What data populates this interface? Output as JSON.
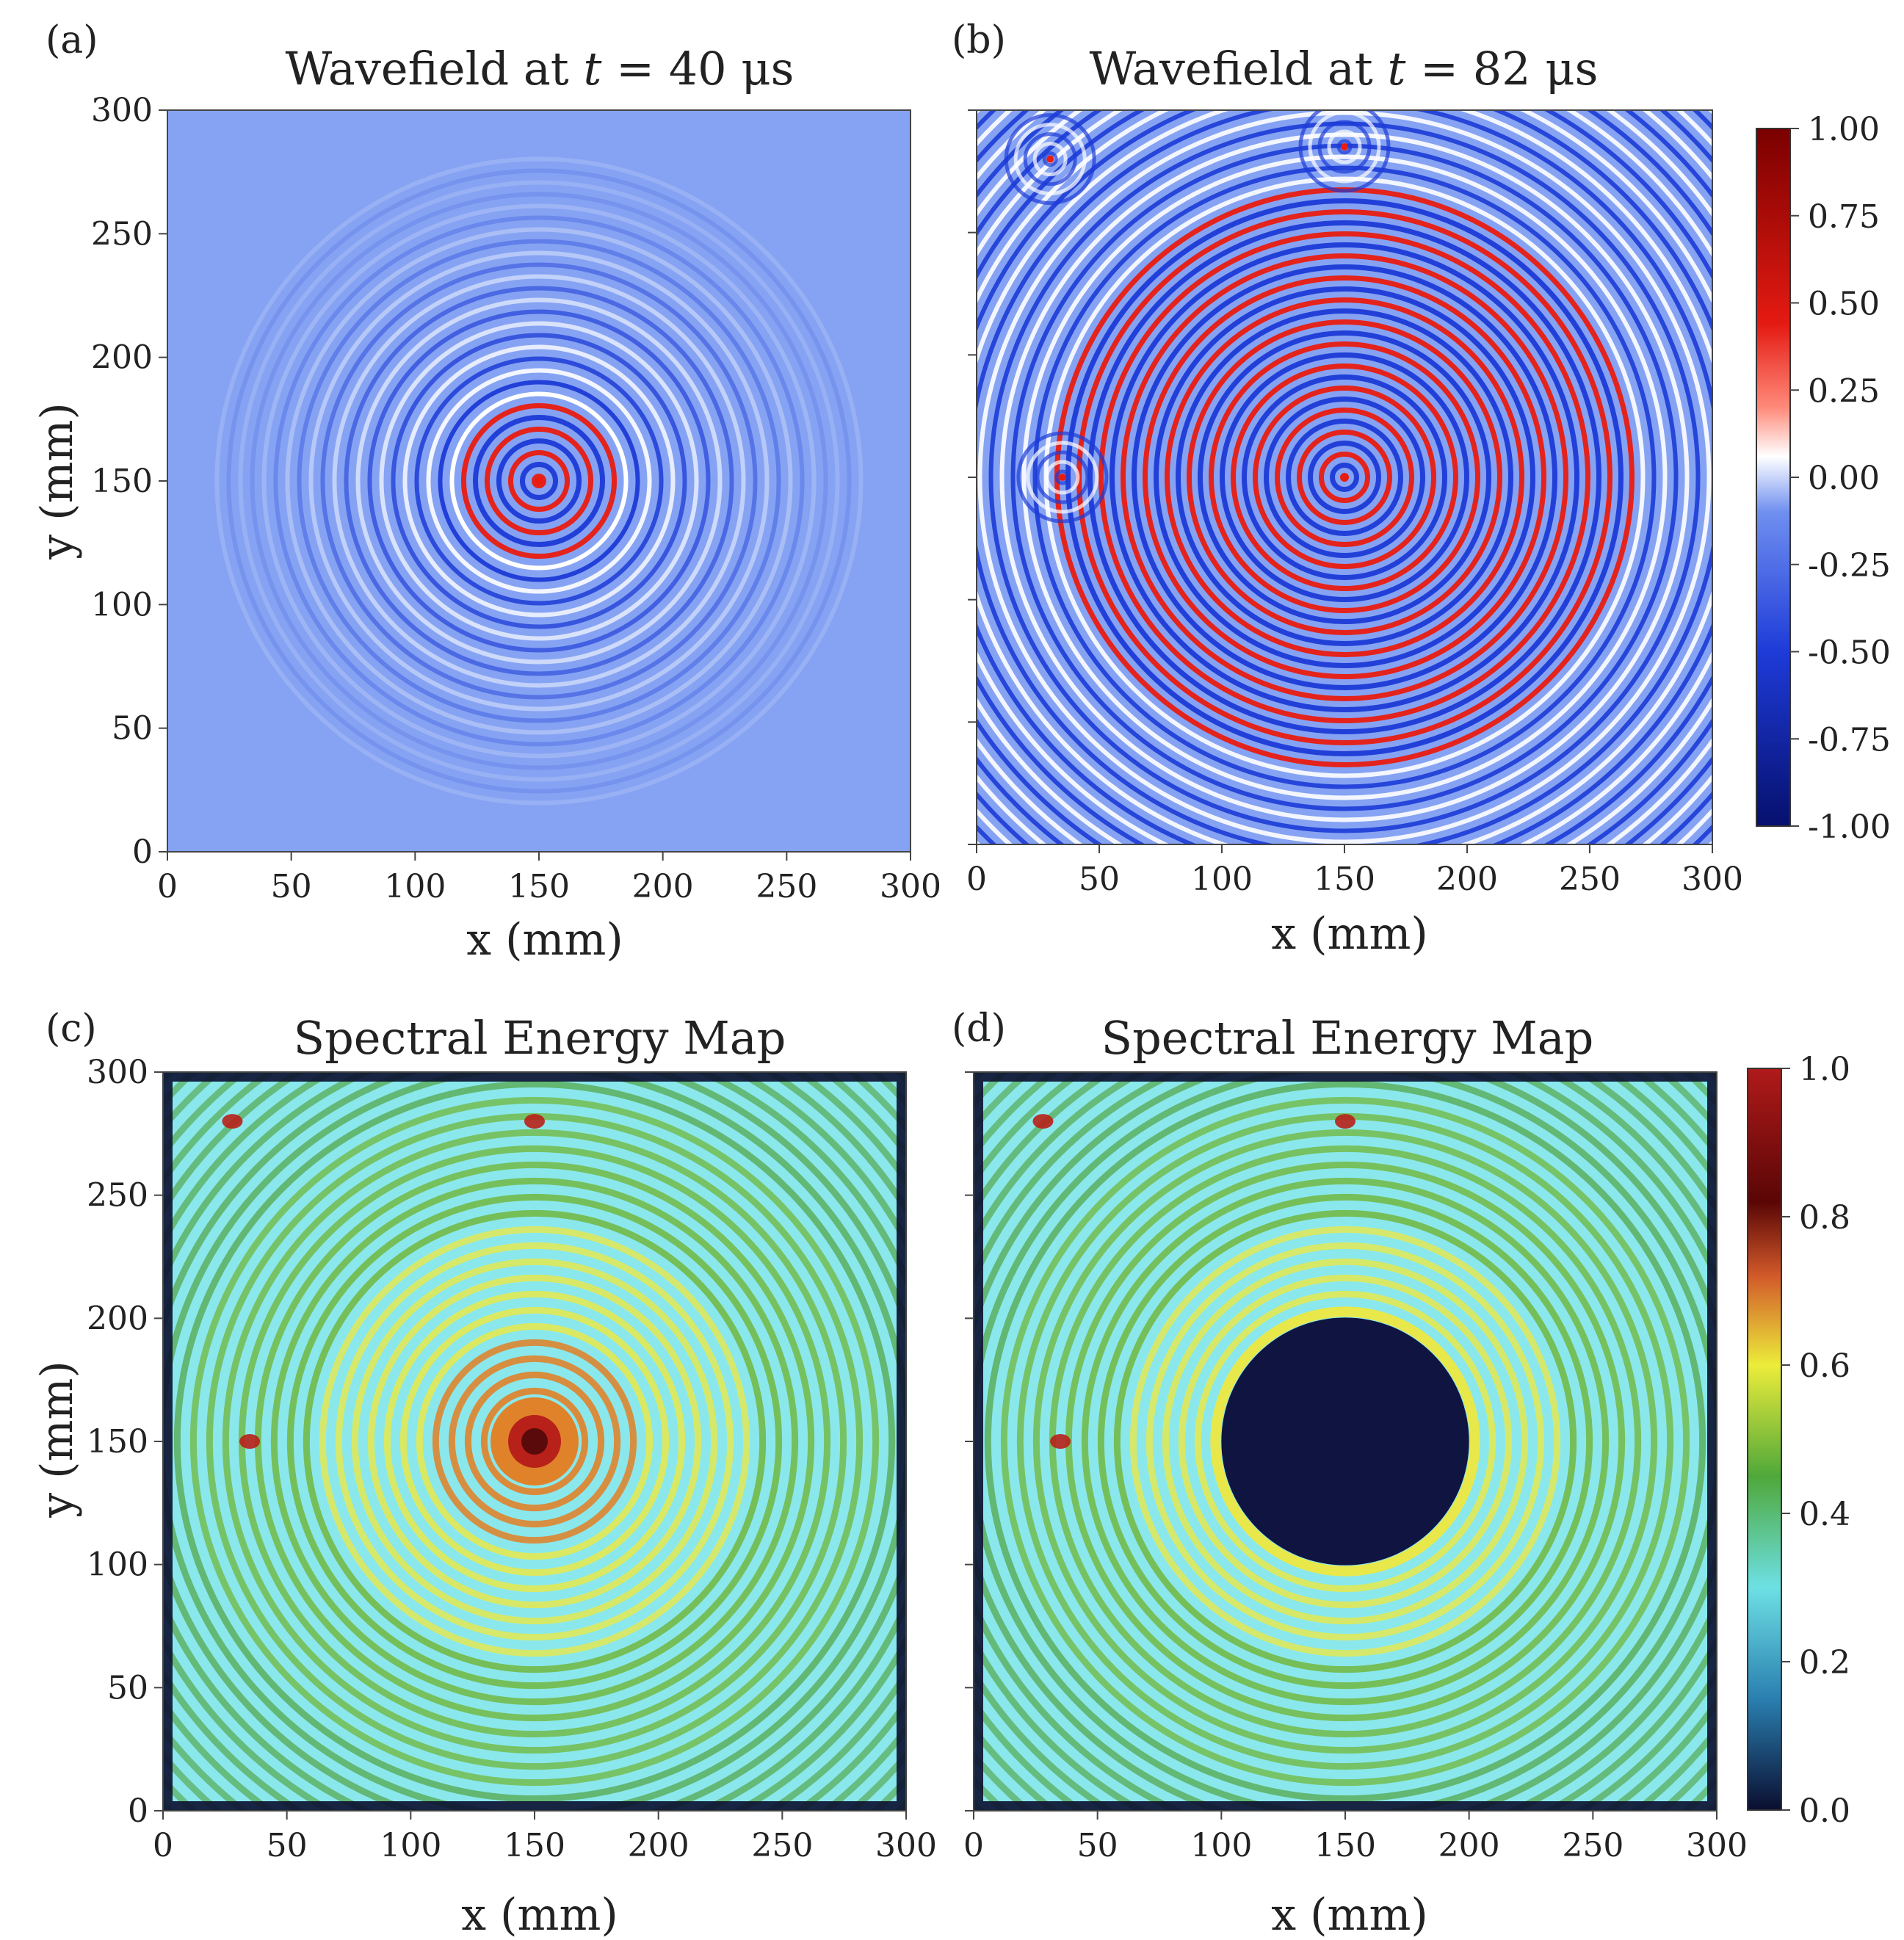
{
  "colors": {
    "wave_cmap": [
      "#0a0f7a",
      "#1c3bd6",
      "#3f70f0",
      "#8aa8f2",
      "#ffffff",
      "#ff9a8a",
      "#e81c10",
      "#b01010",
      "#7a0000"
    ],
    "energy_cmap": [
      "#0b1030",
      "#1a4f8a",
      "#3fb8c4",
      "#8ae8ec",
      "#4fa03a",
      "#6fb22e",
      "#e8e84a",
      "#e0822a",
      "#b8201a",
      "#5a0a0a"
    ],
    "background_field": "#86a3f3",
    "hole_fill": "#101440"
  },
  "chart_data": [
    {
      "panel": "(a)",
      "type": "heatmap",
      "title_prefix": "Wavefield at ",
      "title_var": "t",
      "title_suffix": " = 40 μs",
      "xlabel": "x (mm)",
      "ylabel": "y (mm)",
      "xlim": [
        0,
        300
      ],
      "ylim": [
        0,
        300
      ],
      "xticks": [
        0,
        50,
        100,
        150,
        200,
        250,
        300
      ],
      "yticks": [
        0,
        50,
        100,
        150,
        200,
        250,
        300
      ],
      "source_xy": [
        150,
        150
      ],
      "outer_wave_radius_mm": 130,
      "strong_region_radius_mm": 35,
      "field_range": [
        -1.0,
        1.0
      ]
    },
    {
      "panel": "(b)",
      "type": "heatmap",
      "title_prefix": "Wavefield at ",
      "title_var": "t",
      "title_suffix": " = 82 μs",
      "xlabel": "x (mm)",
      "ylabel": "",
      "xlim": [
        0,
        300
      ],
      "ylim": [
        0,
        300
      ],
      "xticks": [
        0,
        50,
        100,
        150,
        200,
        250,
        300
      ],
      "yticks": [
        0,
        50,
        100,
        150,
        200,
        250,
        300
      ],
      "show_ytick_labels": false,
      "source_xy": [
        150,
        150
      ],
      "scatterers_xy": [
        [
          35,
          150
        ],
        [
          150,
          285
        ],
        [
          30,
          280
        ]
      ],
      "strong_region_radius_mm": 120,
      "field_range": [
        -1.0,
        1.0
      ],
      "colorbar": {
        "ticks": [
          "1.00",
          "0.75",
          "0.50",
          "0.25",
          "0.00",
          "-0.25",
          "-0.50",
          "-0.75",
          "-1.00"
        ],
        "range": [
          -1.0,
          1.0
        ]
      }
    },
    {
      "panel": "(c)",
      "type": "heatmap",
      "title": "Spectral Energy Map",
      "xlabel": "x (mm)",
      "ylabel": "y (mm)",
      "xlim": [
        0,
        300
      ],
      "ylim": [
        0,
        300
      ],
      "xticks": [
        0,
        50,
        100,
        150,
        200,
        250,
        300
      ],
      "yticks": [
        0,
        50,
        100,
        150,
        200,
        250,
        300
      ],
      "source_xy": [
        150,
        150
      ],
      "peak_energy": 0.95,
      "hotspots_xy": [
        [
          35,
          150
        ],
        [
          150,
          280
        ],
        [
          28,
          280
        ]
      ],
      "energy_range": [
        0.0,
        1.0
      ]
    },
    {
      "panel": "(d)",
      "type": "heatmap",
      "title": "Spectral Energy Map",
      "xlabel": "x (mm)",
      "ylabel": "",
      "xlim": [
        0,
        300
      ],
      "ylim": [
        0,
        300
      ],
      "xticks": [
        0,
        50,
        100,
        150,
        200,
        250,
        300
      ],
      "yticks": [
        0,
        50,
        100,
        150,
        200,
        250,
        300
      ],
      "show_ytick_labels": false,
      "source_xy": [
        150,
        150
      ],
      "masked_disc_center_xy": [
        150,
        150
      ],
      "masked_disc_radius_mm": 50,
      "hotspots_xy": [
        [
          35,
          150
        ],
        [
          150,
          280
        ],
        [
          28,
          280
        ]
      ],
      "energy_range": [
        0.0,
        1.0
      ],
      "colorbar": {
        "ticks": [
          "1.0",
          "0.8",
          "0.6",
          "0.4",
          "0.2",
          "0.0"
        ],
        "range": [
          0.0,
          1.0
        ]
      }
    }
  ]
}
